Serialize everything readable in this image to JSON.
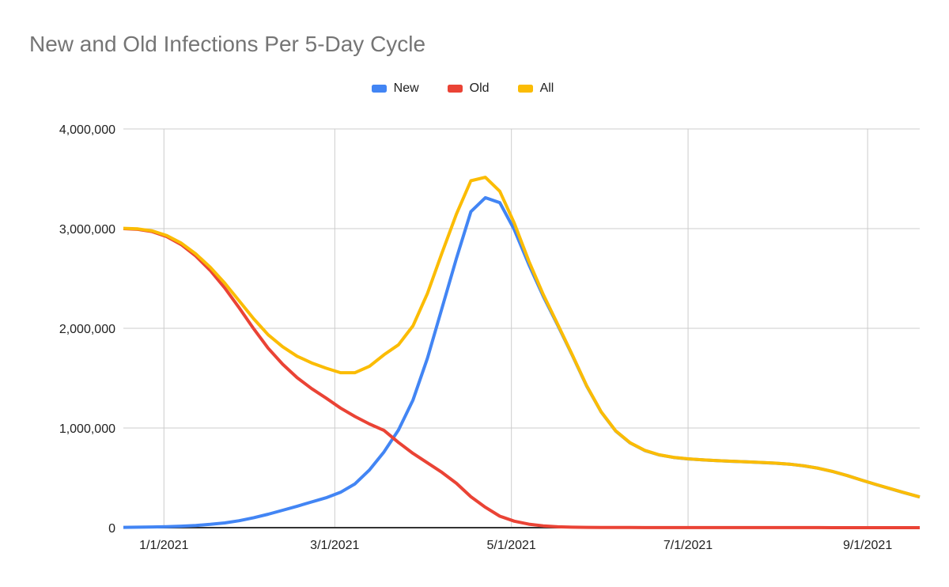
{
  "title": "New and Old Infections Per 5-Day Cycle",
  "colors": {
    "series_new": "#4285F4",
    "series_old": "#EA4335",
    "series_all": "#FBBC04",
    "title_text": "#757575",
    "tick_text": "#212121",
    "gridline": "#cccccc",
    "axis_line": "#333333",
    "background": "#ffffff"
  },
  "chart_data": {
    "type": "line",
    "title": "New and Old Infections Per 5-Day Cycle",
    "xlabel": "",
    "ylabel": "",
    "grid": true,
    "legend_position": "top",
    "ylim": [
      0,
      4000000
    ],
    "y_ticks": [
      {
        "value": 0,
        "label": "0"
      },
      {
        "value": 1000000,
        "label": "1,000,000"
      },
      {
        "value": 2000000,
        "label": "2,000,000"
      },
      {
        "value": 3000000,
        "label": "3,000,000"
      },
      {
        "value": 4000000,
        "label": "4,000,000"
      }
    ],
    "x_ticks": [
      {
        "date": "1/1/2021",
        "label": "1/1/2021"
      },
      {
        "date": "3/1/2021",
        "label": "3/1/2021"
      },
      {
        "date": "5/1/2021",
        "label": "5/1/2021"
      },
      {
        "date": "7/1/2021",
        "label": "7/1/2021"
      },
      {
        "date": "9/1/2021",
        "label": "9/1/2021"
      }
    ],
    "x": [
      "12/18/2020",
      "12/23/2020",
      "12/28/2020",
      "1/2/2021",
      "1/7/2021",
      "1/12/2021",
      "1/17/2021",
      "1/22/2021",
      "1/27/2021",
      "2/1/2021",
      "2/6/2021",
      "2/11/2021",
      "2/16/2021",
      "2/21/2021",
      "2/26/2021",
      "3/3/2021",
      "3/8/2021",
      "3/13/2021",
      "3/18/2021",
      "3/23/2021",
      "3/28/2021",
      "4/2/2021",
      "4/7/2021",
      "4/12/2021",
      "4/17/2021",
      "4/22/2021",
      "4/27/2021",
      "5/2/2021",
      "5/7/2021",
      "5/12/2021",
      "5/17/2021",
      "5/22/2021",
      "5/27/2021",
      "6/1/2021",
      "6/6/2021",
      "6/11/2021",
      "6/16/2021",
      "6/21/2021",
      "6/26/2021",
      "7/1/2021",
      "7/6/2021",
      "7/11/2021",
      "7/16/2021",
      "7/21/2021",
      "7/26/2021",
      "7/31/2021",
      "8/5/2021",
      "8/10/2021",
      "8/15/2021",
      "8/20/2021",
      "8/25/2021",
      "8/30/2021",
      "9/4/2021",
      "9/9/2021",
      "9/14/2021",
      "9/19/2021"
    ],
    "series": [
      {
        "name": "New",
        "color": "#4285F4",
        "values": [
          3000,
          4500,
          6800,
          10000,
          15000,
          22000,
          33000,
          48000,
          70000,
          100000,
          135000,
          175000,
          215000,
          258000,
          300000,
          355000,
          440000,
          580000,
          760000,
          980000,
          1280000,
          1700000,
          2200000,
          2700000,
          3170000,
          3310000,
          3260000,
          2990000,
          2640000,
          2320000,
          2030000,
          1730000,
          1420000,
          1160000,
          970000,
          850000,
          775000,
          730000,
          705000,
          690000,
          680000,
          672000,
          666000,
          660000,
          654000,
          647000,
          637000,
          620000,
          596000,
          563000,
          522000,
          476000,
          432000,
          390000,
          348000,
          308000
        ]
      },
      {
        "name": "Old",
        "color": "#EA4335",
        "values": [
          3000000,
          2993000,
          2970000,
          2920000,
          2840000,
          2725000,
          2580000,
          2405000,
          2205000,
          1995000,
          1800000,
          1640000,
          1505000,
          1395000,
          1300000,
          1200000,
          1115000,
          1040000,
          975000,
          855000,
          745000,
          650000,
          555000,
          445000,
          310000,
          205000,
          115000,
          65000,
          35000,
          18000,
          9000,
          5000,
          3000,
          2000,
          1500,
          1200,
          1000,
          900,
          800,
          700,
          650,
          600,
          550,
          500,
          480,
          460,
          440,
          420,
          400,
          380,
          360,
          340,
          320,
          300,
          280,
          260
        ]
      },
      {
        "name": "All",
        "color": "#FBBC04",
        "values": [
          3003000,
          2997500,
          2976800,
          2930000,
          2855000,
          2747000,
          2613000,
          2453000,
          2275000,
          2095000,
          1935000,
          1815000,
          1720000,
          1653000,
          1600000,
          1555000,
          1555000,
          1620000,
          1735000,
          1835000,
          2025000,
          2350000,
          2755000,
          3145000,
          3480000,
          3515000,
          3375000,
          3055000,
          2675000,
          2338000,
          2039000,
          1735000,
          1423000,
          1162000,
          971500,
          851200,
          776000,
          730900,
          705800,
          690700,
          680650,
          672600,
          666550,
          660500,
          654480,
          647460,
          637440,
          620420,
          596400,
          563380,
          522360,
          476340,
          432320,
          390300,
          348280,
          308260
        ]
      }
    ]
  }
}
